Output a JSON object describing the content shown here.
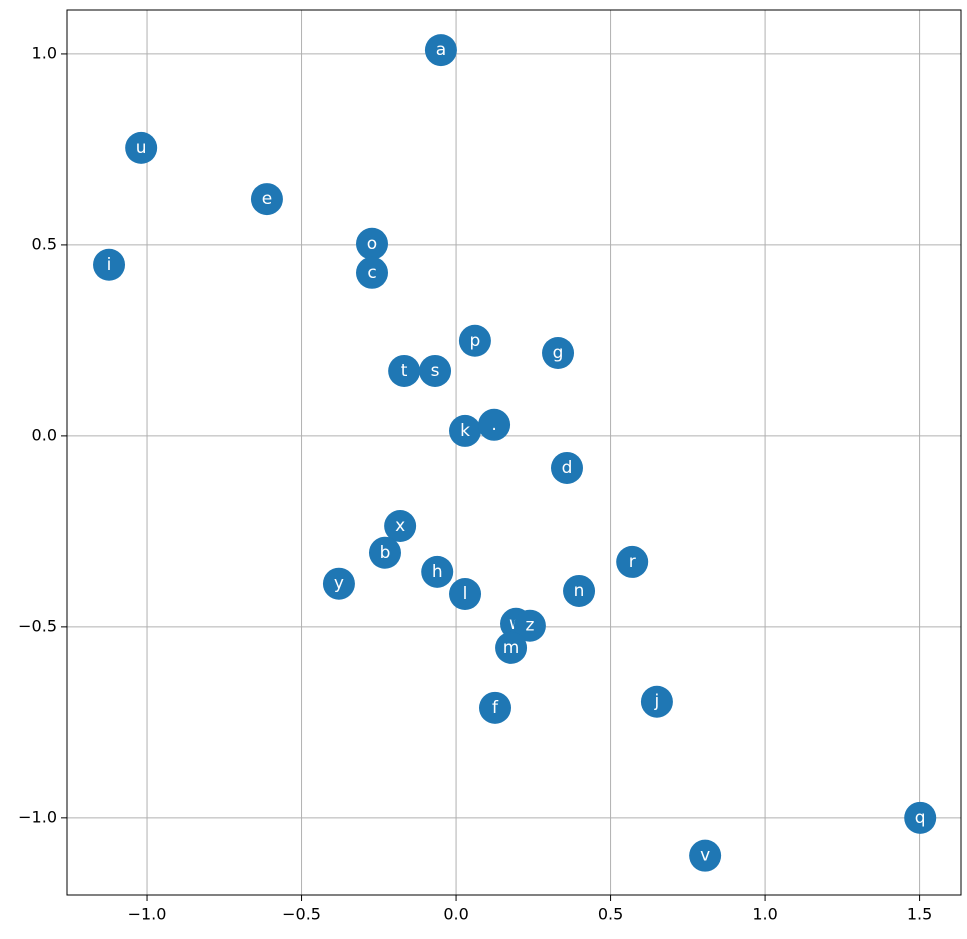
{
  "chart_data": {
    "type": "scatter",
    "labels": [
      "a",
      "u",
      "e",
      "o",
      "c",
      "i",
      "p",
      "g",
      "t",
      "s",
      "k",
      ".",
      "d",
      "x",
      "b",
      "y",
      "h",
      "l",
      "r",
      "n",
      "w",
      "z",
      "m",
      "f",
      "j",
      "q",
      "v"
    ],
    "x": [
      -0.049,
      -1.019,
      -0.612,
      -0.272,
      -0.272,
      -1.123,
      0.061,
      0.33,
      -0.168,
      -0.068,
      0.029,
      0.123,
      0.359,
      -0.181,
      -0.23,
      -0.379,
      -0.061,
      0.029,
      0.57,
      0.398,
      0.194,
      0.239,
      0.178,
      0.126,
      0.65,
      1.502,
      0.806
    ],
    "y": [
      1.01,
      0.754,
      0.62,
      0.503,
      0.427,
      0.448,
      0.249,
      0.217,
      0.17,
      0.17,
      0.013,
      0.029,
      -0.084,
      -0.236,
      -0.306,
      -0.387,
      -0.356,
      -0.414,
      -0.33,
      -0.406,
      -0.492,
      -0.497,
      -0.555,
      -0.712,
      -0.696,
      -1.0,
      -1.099
    ],
    "color": "#1f77b4",
    "xlim": [
      -1.259,
      1.634
    ],
    "ylim": [
      -1.202,
      1.115
    ],
    "xticks": [
      {
        "value": -1.0,
        "label": "−1.0"
      },
      {
        "value": -0.5,
        "label": "−0.5"
      },
      {
        "value": 0.0,
        "label": "0.0"
      },
      0.5,
      {
        "value": 1.0,
        "label": "1.0"
      },
      1.5
    ],
    "yticks": [
      {
        "value": -1.0,
        "label": "−1.0"
      },
      {
        "value": -0.5,
        "label": "−0.5"
      },
      {
        "value": 0.0,
        "label": "0.0"
      },
      0.5,
      {
        "value": 1.0,
        "label": "1.0"
      }
    ],
    "grid": true
  }
}
